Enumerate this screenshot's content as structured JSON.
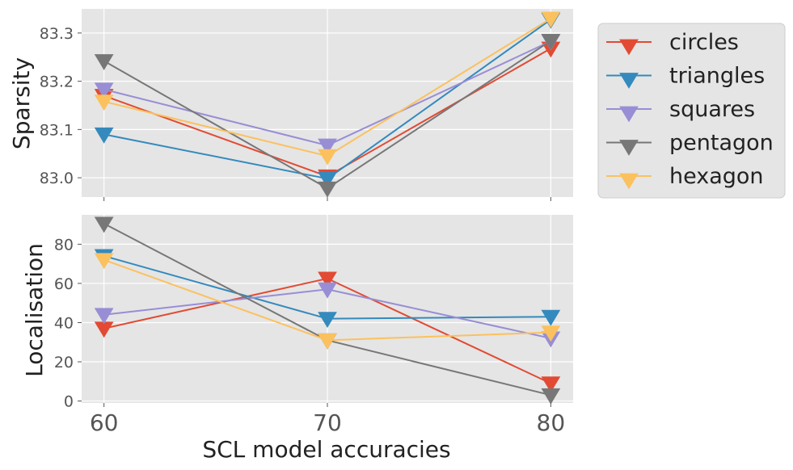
{
  "chart_data": [
    {
      "type": "line",
      "x": [
        60,
        70,
        80
      ],
      "ylabel": "Sparsity",
      "xlabel": "",
      "ylim": [
        82.96,
        83.35
      ],
      "yticks": [
        "83.0",
        "83.1",
        "83.2",
        "83.3"
      ],
      "grid": true,
      "series": [
        {
          "name": "circles",
          "color": "#E24A33",
          "values": [
            83.17,
            83.003,
            83.268
          ]
        },
        {
          "name": "triangles",
          "color": "#348ABD",
          "values": [
            83.09,
            82.998,
            83.328
          ]
        },
        {
          "name": "squares",
          "color": "#988ED5",
          "values": [
            83.183,
            83.067,
            83.283
          ]
        },
        {
          "name": "pentagon",
          "color": "#777777",
          "values": [
            83.242,
            82.978,
            83.284
          ]
        },
        {
          "name": "hexagon",
          "color": "#FBC15E",
          "values": [
            83.158,
            83.045,
            83.33
          ]
        }
      ]
    },
    {
      "type": "line",
      "x": [
        60,
        70,
        80
      ],
      "ylabel": "Localisation",
      "xlabel": "SCL model accuracies",
      "ylim": [
        -1,
        95
      ],
      "yticks": [
        "0",
        "20",
        "40",
        "60",
        "80"
      ],
      "xticks": [
        "60",
        "70",
        "80"
      ],
      "grid": true,
      "series": [
        {
          "name": "circles",
          "color": "#E24A33",
          "values": [
            37,
            62.5,
            9
          ]
        },
        {
          "name": "triangles",
          "color": "#348ABD",
          "values": [
            74,
            42,
            43
          ]
        },
        {
          "name": "squares",
          "color": "#988ED5",
          "values": [
            44,
            57,
            32
          ]
        },
        {
          "name": "pentagon",
          "color": "#777777",
          "values": [
            90.5,
            31,
            3
          ]
        },
        {
          "name": "hexagon",
          "color": "#FBC15E",
          "values": [
            72,
            31,
            35
          ]
        }
      ]
    }
  ],
  "legend": {
    "placement": "right",
    "items": [
      "circles",
      "triangles",
      "squares",
      "pentagon",
      "hexagon"
    ]
  }
}
